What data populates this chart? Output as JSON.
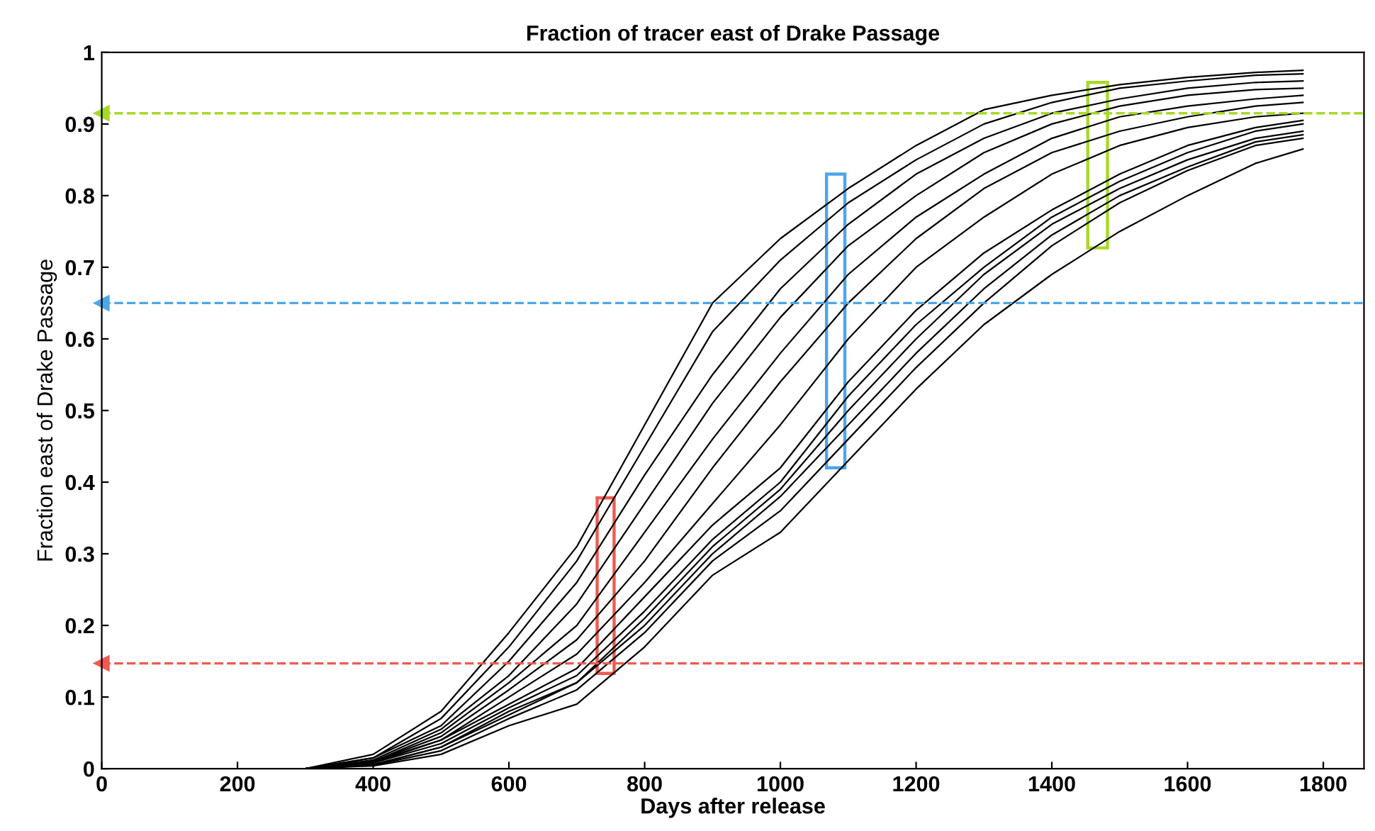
{
  "chart_data": {
    "type": "line",
    "title": "Fraction of tracer east of Drake Passage",
    "xlabel": "Days after release",
    "ylabel": "Fraction east of Drake Passage",
    "xlim": [
      0,
      1860
    ],
    "xticks": [
      0,
      200,
      400,
      600,
      800,
      1000,
      1200,
      1400,
      1600,
      1800
    ],
    "ylim": [
      0,
      1
    ],
    "yticks": [
      0,
      0.1,
      0.2,
      0.3,
      0.4,
      0.5,
      0.6,
      0.7,
      0.8,
      0.9,
      1
    ],
    "grid": false,
    "legend": false,
    "marker": "none",
    "line_style": "solid",
    "x": [
      130,
      300,
      400,
      500,
      600,
      700,
      800,
      900,
      1000,
      1100,
      1200,
      1300,
      1400,
      1500,
      1600,
      1700,
      1770
    ],
    "series": [
      {
        "color": "#000000",
        "values": [
          0,
          0,
          0.02,
          0.08,
          0.19,
          0.31,
          0.48,
          0.65,
          0.74,
          0.81,
          0.87,
          0.92,
          0.94,
          0.955,
          0.965,
          0.972,
          0.975
        ]
      },
      {
        "color": "#000000",
        "values": [
          0,
          0,
          0.015,
          0.07,
          0.17,
          0.29,
          0.45,
          0.61,
          0.71,
          0.79,
          0.85,
          0.9,
          0.93,
          0.95,
          0.96,
          0.968,
          0.97
        ]
      },
      {
        "color": "#000000",
        "values": [
          0,
          0,
          0.015,
          0.06,
          0.15,
          0.26,
          0.41,
          0.55,
          0.67,
          0.76,
          0.83,
          0.88,
          0.915,
          0.935,
          0.95,
          0.958,
          0.96
        ]
      },
      {
        "color": "#000000",
        "values": [
          0,
          0,
          0.012,
          0.055,
          0.13,
          0.23,
          0.37,
          0.51,
          0.63,
          0.73,
          0.8,
          0.86,
          0.9,
          0.925,
          0.94,
          0.948,
          0.95
        ]
      },
      {
        "color": "#000000",
        "values": [
          0,
          0,
          0.01,
          0.05,
          0.12,
          0.2,
          0.33,
          0.46,
          0.58,
          0.69,
          0.77,
          0.83,
          0.88,
          0.91,
          0.925,
          0.935,
          0.94
        ]
      },
      {
        "color": "#000000",
        "values": [
          0,
          0,
          0.01,
          0.045,
          0.11,
          0.18,
          0.29,
          0.42,
          0.54,
          0.65,
          0.74,
          0.81,
          0.86,
          0.89,
          0.91,
          0.925,
          0.93
        ]
      },
      {
        "color": "#000000",
        "values": [
          0,
          0,
          0.01,
          0.04,
          0.1,
          0.16,
          0.26,
          0.37,
          0.48,
          0.6,
          0.7,
          0.77,
          0.83,
          0.87,
          0.895,
          0.91,
          0.915
        ]
      },
      {
        "color": "#000000",
        "values": [
          0,
          0,
          0.008,
          0.04,
          0.09,
          0.14,
          0.24,
          0.34,
          0.42,
          0.54,
          0.64,
          0.72,
          0.78,
          0.83,
          0.87,
          0.895,
          0.905
        ]
      },
      {
        "color": "#000000",
        "values": [
          0,
          0,
          0.008,
          0.035,
          0.085,
          0.13,
          0.22,
          0.32,
          0.4,
          0.52,
          0.62,
          0.7,
          0.77,
          0.82,
          0.86,
          0.89,
          0.9
        ]
      },
      {
        "color": "#000000",
        "values": [
          0,
          0,
          0.006,
          0.03,
          0.08,
          0.12,
          0.21,
          0.31,
          0.39,
          0.5,
          0.6,
          0.69,
          0.76,
          0.81,
          0.85,
          0.88,
          0.89
        ]
      },
      {
        "color": "#000000",
        "values": [
          0,
          0,
          0.005,
          0.03,
          0.075,
          0.12,
          0.2,
          0.3,
          0.38,
          0.48,
          0.58,
          0.67,
          0.745,
          0.8,
          0.84,
          0.875,
          0.885
        ]
      },
      {
        "color": "#000000",
        "values": [
          0,
          0,
          0.005,
          0.025,
          0.07,
          0.11,
          0.19,
          0.29,
          0.36,
          0.46,
          0.56,
          0.65,
          0.73,
          0.79,
          0.835,
          0.87,
          0.88
        ]
      },
      {
        "color": "#000000",
        "values": [
          0,
          0,
          0.004,
          0.02,
          0.06,
          0.09,
          0.17,
          0.27,
          0.33,
          0.43,
          0.53,
          0.62,
          0.69,
          0.75,
          0.8,
          0.845,
          0.865
        ]
      }
    ],
    "ref_lines": [
      {
        "axis": "y",
        "value": 0.915,
        "color": "#a8d82a",
        "line_style": "dashed"
      },
      {
        "axis": "y",
        "value": 0.65,
        "color": "#4da6e8",
        "line_style": "dashed"
      },
      {
        "axis": "y",
        "value": 0.147,
        "color": "#f05a50",
        "line_style": "dashed"
      }
    ]
  }
}
